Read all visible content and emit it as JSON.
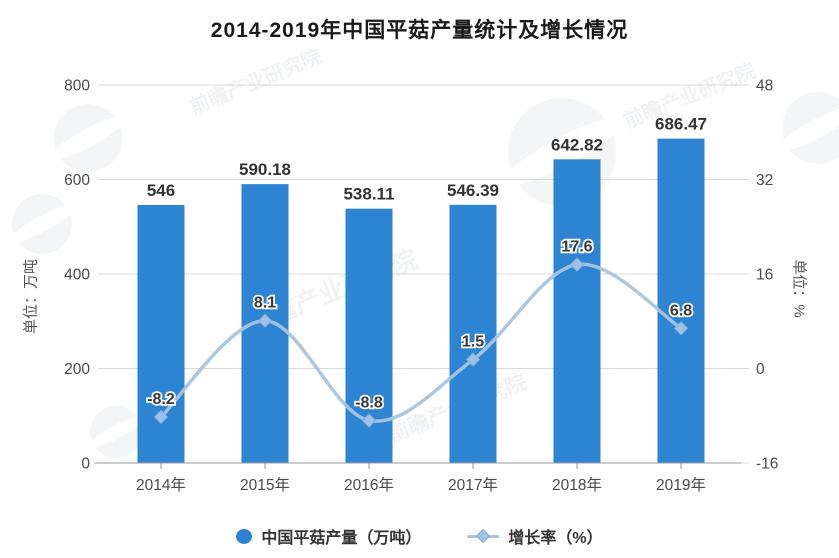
{
  "title": "2014-2019年中国平菇产量统计及增长情况",
  "watermark": {
    "text": "前瞻产业研究院"
  },
  "colors": {
    "bar": "#2d84d3",
    "line": "#a9c4de",
    "marker_fill": "#9fc1e6",
    "marker_stroke": "#86aed8",
    "grid": "#d9d9d9",
    "axis": "#9a9a9a",
    "tick_label": "#4a4a4a",
    "value_label": "#333333",
    "line_label": "#3a3a3a",
    "watermark": "#98a1ad"
  },
  "chart_data": {
    "type": "bar",
    "categories": [
      "2014年",
      "2015年",
      "2016年",
      "2017年",
      "2018年",
      "2019年"
    ],
    "series": [
      {
        "name": "中国平菇产量（万吨）",
        "type": "bar",
        "axis": "left",
        "values": [
          546,
          590.18,
          538.11,
          546.39,
          642.82,
          686.47
        ],
        "labels": [
          "546",
          "590.18",
          "538.11",
          "546.39",
          "642.82",
          "686.47"
        ]
      },
      {
        "name": "增长率（%）",
        "type": "line",
        "axis": "right",
        "values": [
          -8.2,
          8.1,
          -8.8,
          1.5,
          17.6,
          6.8
        ],
        "labels": [
          "-8.2",
          "8.1",
          "-8.8",
          "1.5",
          "17.6",
          "6.8"
        ]
      }
    ],
    "left_axis": {
      "title": "单位：万吨",
      "ticks": [
        800,
        600,
        400,
        200,
        0
      ],
      "range": [
        0,
        800
      ]
    },
    "right_axis": {
      "title": "单位：%",
      "ticks": [
        48,
        32,
        16,
        0,
        -16
      ],
      "range": [
        -16,
        48
      ]
    },
    "grid": true,
    "legend_position": "bottom"
  }
}
